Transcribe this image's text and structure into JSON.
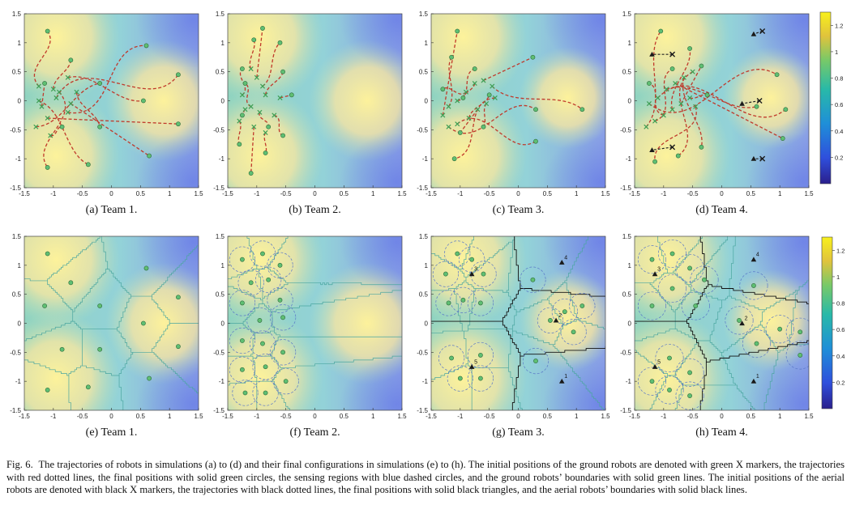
{
  "figure": {
    "number": "Fig. 6.",
    "caption": "The trajectories of robots in simulations (a) to (d) and their final configurations in simulations (e) to (h). The initial positions of the ground robots are denoted with green X markers, the trajectories with red dotted lines, the final positions with solid green circles, the sensing regions with blue dashed circles, and the ground robots’ boundaries with solid green lines. The initial positions of the aerial robots are denoted with black X markers, the trajectories with black dotted lines, the final positions with solid black triangles, and the aerial robots’ boundaries with solid black lines."
  },
  "axes": {
    "xlim": [
      -1.5,
      1.5
    ],
    "ylim": [
      -1.5,
      1.5
    ],
    "xticks": [
      "-1.5",
      "-1",
      "-0.5",
      "0",
      "0.5",
      "1",
      "1.5"
    ],
    "yticks": [
      "-1.5",
      "-1",
      "-0.5",
      "0",
      "0.5",
      "1",
      "1.5"
    ]
  },
  "colorbar": {
    "range": [
      0,
      1.3
    ],
    "ticks": [
      "0.2",
      "0.4",
      "0.6",
      "0.8",
      "1",
      "1.2"
    ]
  },
  "colors": {
    "ground_marker": "#3e9f55",
    "aerial_marker": "#1a1a1a",
    "trajectory_red": "#c0392b",
    "sensing_circle": "#5a78c8",
    "ground_boundary": "#4aa6a0",
    "aerial_boundary": "#111111"
  },
  "subfigures": [
    {
      "id": "a",
      "label": "(a) Team 1.",
      "kind": "trajectories",
      "ground_final": [
        [
          -1.1,
          1.2
        ],
        [
          -0.7,
          0.7
        ],
        [
          -1.15,
          0.3
        ],
        [
          -0.2,
          0.3
        ],
        [
          0.6,
          0.95
        ],
        [
          1.15,
          0.45
        ],
        [
          0.55,
          0.0
        ],
        [
          1.15,
          -0.4
        ],
        [
          -0.2,
          -0.45
        ],
        [
          -0.85,
          -0.45
        ],
        [
          -1.1,
          -1.15
        ],
        [
          -0.4,
          -1.1
        ],
        [
          0.65,
          -0.95
        ]
      ],
      "ground_start": [
        [
          -1.25,
          0.25
        ],
        [
          -1.0,
          0.2
        ],
        [
          -1.2,
          -0.1
        ],
        [
          -1.3,
          -0.45
        ],
        [
          -0.75,
          -0.2
        ],
        [
          -0.95,
          0.05
        ],
        [
          -0.75,
          0.4
        ],
        [
          -1.1,
          -0.3
        ],
        [
          -0.6,
          0.15
        ],
        [
          -1.05,
          -0.6
        ],
        [
          -0.9,
          0.15
        ],
        [
          -1.25,
          0.0
        ],
        [
          -0.7,
          -0.05
        ]
      ]
    },
    {
      "id": "b",
      "label": "(b) Team 2.",
      "kind": "trajectories",
      "ground_final": [
        [
          -1.05,
          1.05
        ],
        [
          -0.9,
          1.25
        ],
        [
          -0.6,
          1.0
        ],
        [
          -1.25,
          0.55
        ],
        [
          -1.2,
          0.3
        ],
        [
          -0.55,
          0.5
        ],
        [
          -0.4,
          0.1
        ],
        [
          -1.25,
          -0.25
        ],
        [
          -0.8,
          -0.45
        ],
        [
          -0.55,
          -0.6
        ],
        [
          -1.3,
          -0.75
        ],
        [
          -1.1,
          -1.25
        ],
        [
          -0.85,
          -0.9
        ]
      ],
      "ground_start": [
        [
          -1.1,
          0.55
        ],
        [
          -1.0,
          0.4
        ],
        [
          -0.9,
          0.25
        ],
        [
          -1.25,
          0.1
        ],
        [
          -1.1,
          -0.1
        ],
        [
          -0.85,
          0.1
        ],
        [
          -0.6,
          0.05
        ],
        [
          -1.2,
          -0.15
        ],
        [
          -0.95,
          -0.2
        ],
        [
          -0.7,
          -0.25
        ],
        [
          -1.3,
          -0.35
        ],
        [
          -1.05,
          -0.45
        ],
        [
          -0.85,
          -0.55
        ]
      ]
    },
    {
      "id": "c",
      "label": "(c) Team 3.",
      "kind": "trajectories",
      "ground_final": [
        [
          -1.05,
          1.2
        ],
        [
          -1.15,
          0.75
        ],
        [
          -0.75,
          0.55
        ],
        [
          -1.3,
          0.2
        ],
        [
          -0.95,
          0.05
        ],
        [
          0.25,
          0.75
        ],
        [
          1.1,
          -0.15
        ],
        [
          0.3,
          -0.15
        ],
        [
          0.3,
          -0.7
        ],
        [
          -0.5,
          0.1
        ],
        [
          -1.0,
          -0.55
        ],
        [
          -0.6,
          -0.45
        ],
        [
          -1.1,
          -1.0
        ]
      ],
      "ground_start": [
        [
          -1.3,
          -0.25
        ],
        [
          -1.2,
          -0.1
        ],
        [
          -1.05,
          0.0
        ],
        [
          -0.9,
          0.15
        ],
        [
          -0.75,
          0.3
        ],
        [
          -0.6,
          0.35
        ],
        [
          -0.45,
          0.25
        ],
        [
          -1.2,
          -0.45
        ],
        [
          -1.05,
          -0.4
        ],
        [
          -0.85,
          -0.3
        ],
        [
          -0.7,
          -0.15
        ],
        [
          -0.55,
          -0.05
        ],
        [
          -0.4,
          0.05
        ]
      ]
    },
    {
      "id": "d",
      "label": "(d) Team 4.",
      "kind": "trajectories",
      "ground_final": [
        [
          -1.05,
          1.2
        ],
        [
          -0.85,
          0.55
        ],
        [
          -1.25,
          0.3
        ],
        [
          -0.55,
          0.9
        ],
        [
          -0.35,
          0.6
        ],
        [
          -0.25,
          0.1
        ],
        [
          0.95,
          0.45
        ],
        [
          1.1,
          -0.15
        ],
        [
          0.6,
          -0.1
        ],
        [
          1.05,
          -0.65
        ],
        [
          -0.35,
          -0.8
        ],
        [
          -0.75,
          -0.95
        ],
        [
          -1.15,
          -1.05
        ]
      ],
      "ground_start": [
        [
          -1.3,
          -0.45
        ],
        [
          -1.15,
          -0.35
        ],
        [
          -1.0,
          -0.25
        ],
        [
          -0.85,
          -0.15
        ],
        [
          -0.7,
          -0.05
        ],
        [
          -0.55,
          0.05
        ],
        [
          -1.25,
          -0.05
        ],
        [
          -1.1,
          0.05
        ],
        [
          -0.95,
          0.2
        ],
        [
          -0.8,
          0.3
        ],
        [
          -0.65,
          0.4
        ],
        [
          -0.5,
          0.5
        ],
        [
          -0.45,
          -0.1
        ]
      ],
      "aerial_start": [
        [
          0.7,
          1.2
        ],
        [
          -0.85,
          0.8
        ],
        [
          0.65,
          0.0
        ],
        [
          -0.85,
          -0.8
        ],
        [
          0.7,
          -1.0
        ]
      ],
      "aerial_final": [
        [
          0.55,
          1.15
        ],
        [
          -1.2,
          0.8
        ],
        [
          0.35,
          -0.05
        ],
        [
          -1.2,
          -0.85
        ],
        [
          0.55,
          -1.0
        ]
      ]
    },
    {
      "id": "e",
      "label": "(e) Team 1.",
      "kind": "configuration",
      "ground_final": [
        [
          -1.1,
          1.2
        ],
        [
          -0.7,
          0.7
        ],
        [
          -1.15,
          0.3
        ],
        [
          -0.2,
          0.3
        ],
        [
          0.6,
          0.95
        ],
        [
          1.15,
          0.45
        ],
        [
          0.55,
          0.0
        ],
        [
          1.15,
          -0.4
        ],
        [
          -0.2,
          -0.45
        ],
        [
          -0.85,
          -0.45
        ],
        [
          -1.1,
          -1.15
        ],
        [
          -0.4,
          -1.1
        ],
        [
          0.65,
          -0.95
        ]
      ],
      "show_sensing": false
    },
    {
      "id": "f",
      "label": "(f) Team 2.",
      "kind": "configuration",
      "ground_final": [
        [
          -1.25,
          1.1
        ],
        [
          -0.9,
          1.2
        ],
        [
          -0.6,
          1.0
        ],
        [
          -1.1,
          0.7
        ],
        [
          -0.8,
          0.75
        ],
        [
          -1.25,
          0.35
        ],
        [
          -0.6,
          0.4
        ],
        [
          -0.95,
          0.05
        ],
        [
          -0.55,
          0.1
        ],
        [
          -1.25,
          -0.3
        ],
        [
          -0.9,
          -0.35
        ],
        [
          -0.55,
          -0.5
        ],
        [
          -1.25,
          -0.8
        ],
        [
          -0.85,
          -0.75
        ],
        [
          -1.2,
          -1.2
        ],
        [
          -0.85,
          -1.2
        ],
        [
          -0.5,
          -1.0
        ]
      ],
      "show_sensing": true,
      "sensing_radius": 0.22
    },
    {
      "id": "g",
      "label": "(g) Team 3.",
      "kind": "configuration",
      "ground_final": [
        [
          -1.05,
          1.2
        ],
        [
          -0.8,
          1.1
        ],
        [
          -1.25,
          0.85
        ],
        [
          -0.6,
          0.85
        ],
        [
          -1.2,
          0.35
        ],
        [
          -0.95,
          0.4
        ],
        [
          -0.65,
          0.35
        ],
        [
          0.25,
          0.75
        ],
        [
          1.1,
          0.3
        ],
        [
          0.8,
          0.2
        ],
        [
          0.95,
          -0.15
        ],
        [
          0.55,
          0.05
        ],
        [
          0.3,
          -0.65
        ],
        [
          -1.15,
          -0.6
        ],
        [
          -0.65,
          -0.55
        ],
        [
          -1.0,
          -0.95
        ],
        [
          -0.65,
          -0.95
        ]
      ],
      "show_sensing": true,
      "sensing_radius": 0.22,
      "aerial_final": [
        [
          0.75,
          1.05
        ],
        [
          -0.8,
          0.85
        ],
        [
          0.65,
          0.05
        ],
        [
          -0.8,
          -0.75
        ],
        [
          0.75,
          -1.0
        ]
      ],
      "aerial_labels": [
        "4",
        "3",
        "2",
        "5",
        "1"
      ]
    },
    {
      "id": "h",
      "label": "(h) Team 4.",
      "kind": "configuration",
      "ground_final": [
        [
          -1.2,
          1.1
        ],
        [
          -0.85,
          1.2
        ],
        [
          -0.55,
          0.95
        ],
        [
          -0.85,
          0.6
        ],
        [
          -1.2,
          0.3
        ],
        [
          -0.45,
          0.3
        ],
        [
          -0.3,
          0.75
        ],
        [
          0.55,
          0.65
        ],
        [
          0.3,
          0.05
        ],
        [
          1.0,
          -0.1
        ],
        [
          1.35,
          -0.15
        ],
        [
          0.6,
          -0.35
        ],
        [
          1.35,
          -0.55
        ],
        [
          -0.9,
          -0.6
        ],
        [
          -0.55,
          -0.85
        ],
        [
          -1.2,
          -1.0
        ],
        [
          -0.9,
          -1.15
        ],
        [
          -0.55,
          -1.25
        ]
      ],
      "show_sensing": true,
      "sensing_radius": 0.24,
      "aerial_final": [
        [
          0.55,
          1.1
        ],
        [
          -1.15,
          0.85
        ],
        [
          0.35,
          0.0
        ],
        [
          -1.15,
          -0.75
        ],
        [
          0.55,
          -1.0
        ]
      ],
      "aerial_labels": [
        "4",
        "3",
        "2",
        "5",
        "1"
      ]
    }
  ]
}
